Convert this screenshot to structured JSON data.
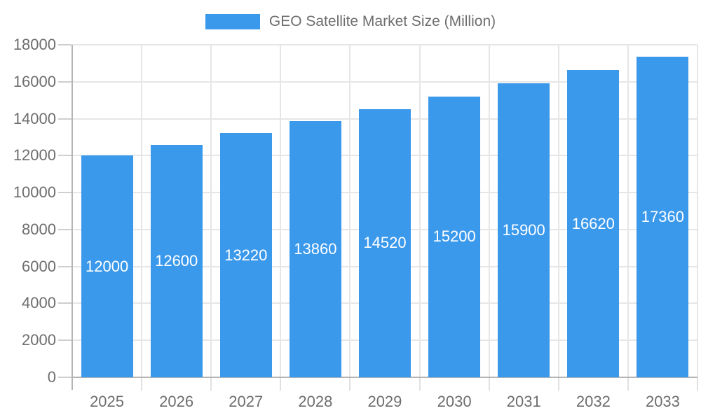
{
  "legend": {
    "label": "GEO Satellite Market Size (Million)"
  },
  "chart_data": {
    "type": "bar",
    "title": "GEO Satellite Market Size (Million)",
    "series_name": "GEO Satellite Market Size (Million)",
    "categories": [
      "2025",
      "2026",
      "2027",
      "2028",
      "2029",
      "2030",
      "2031",
      "2032",
      "2033"
    ],
    "values": [
      12000,
      12600,
      13220,
      13860,
      14520,
      15200,
      15900,
      16620,
      17360
    ],
    "bar_labels": [
      "12000",
      "12600",
      "13220",
      "13860",
      "14520",
      "15200",
      "15900",
      "16620",
      "17360"
    ],
    "xlabel": "",
    "ylabel": "",
    "ylim": [
      0,
      18000
    ],
    "ytick_step": 2000,
    "ytick_labels": [
      "0",
      "2000",
      "4000",
      "6000",
      "8000",
      "10000",
      "12000",
      "14000",
      "16000",
      "18000"
    ],
    "grid": true,
    "legend_position": "top",
    "bar_labels_visible": true,
    "colors": {
      "bar": "#3B99EC",
      "bar_label": "#FFFFFF",
      "axis_text": "#6E6E6E",
      "legend_text": "#6E6E6E",
      "gridline": "#E6E6E6",
      "axis_line": "#B5B5B5",
      "y_tick": "#CFCFCF",
      "x_tick": "#E0E0E0",
      "background": "#FFFFFF"
    }
  }
}
